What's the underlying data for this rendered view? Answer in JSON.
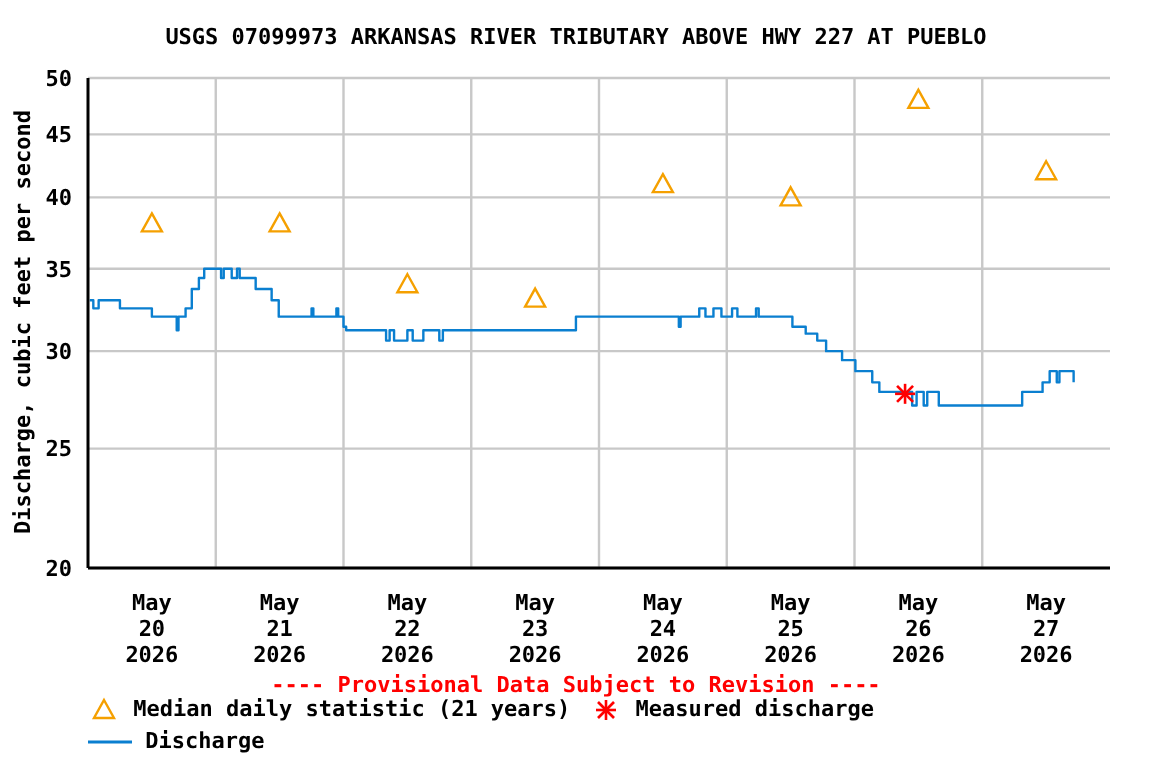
{
  "chart_data": {
    "type": "step",
    "title": "USGS 07099973 ARKANSAS RIVER TRIBUTARY ABOVE HWY 227 AT PUEBLO",
    "ylabel": "Discharge, cubic feet per second",
    "annotations": [
      "---- Provisional Data Subject to Revision ----"
    ],
    "log": "y",
    "grid": true,
    "legend": "bottom",
    "xlim": [
      "2026-05-20T00:00",
      "2026-05-28T00:00"
    ],
    "xticks": [
      {
        "value": "2026-05-20T12:00",
        "label": "May 20 2026"
      },
      {
        "value": "2026-05-21T00:00",
        "label": null
      },
      {
        "value": "2026-05-21T12:00",
        "label": "May 21 2026"
      },
      {
        "value": "2026-05-22T00:00",
        "label": null
      },
      {
        "value": "2026-05-22T12:00",
        "label": "May 22 2026"
      },
      {
        "value": "2026-05-23T00:00",
        "label": null
      },
      {
        "value": "2026-05-23T12:00",
        "label": "May 23 2026"
      },
      {
        "value": "2026-05-24T00:00",
        "label": null
      },
      {
        "value": "2026-05-24T12:00",
        "label": "May 24 2026"
      },
      {
        "value": "2026-05-25T00:00",
        "label": null
      },
      {
        "value": "2026-05-25T12:00",
        "label": "May 25 2026"
      },
      {
        "value": "2026-05-26T00:00",
        "label": null
      },
      {
        "value": "2026-05-26T12:00",
        "label": "May 26 2026"
      },
      {
        "value": "2026-05-27T00:00",
        "label": null
      },
      {
        "value": "2026-05-27T12:00",
        "label": "May 27 2026"
      }
    ],
    "ylim": [
      20,
      50
    ],
    "yticks": [
      20,
      25,
      30,
      35,
      40,
      45,
      50
    ],
    "series": [
      {
        "name": "Median daily statistic (21 years)",
        "type": "scatter",
        "marker": "triangle",
        "color": "#f5a000",
        "x": [
          "2026-05-20T12:00",
          "2026-05-21T12:00",
          "2026-05-22T12:00",
          "2026-05-23T12:00",
          "2026-05-24T12:00",
          "2026-05-25T12:00",
          "2026-05-26T12:00",
          "2026-05-27T12:00"
        ],
        "values": [
          38.1,
          38.1,
          34.0,
          33.1,
          41.0,
          40.0,
          48.0,
          42.0
        ]
      },
      {
        "name": "Measured discharge",
        "type": "scatter",
        "marker": "cross",
        "color": "#ff0000",
        "x": [
          "2026-05-26T09:30"
        ],
        "values": [
          27.7
        ]
      },
      {
        "name": "Discharge",
        "color": "#0a7fd0",
        "x": [
          "2026-05-20T00:20",
          "2026-05-20T01:00",
          "2026-05-20T02:00",
          "2026-05-20T06:00",
          "2026-05-20T12:00",
          "2026-05-20T16:40",
          "2026-05-20T17:00",
          "2026-05-20T18:20",
          "2026-05-20T19:30",
          "2026-05-20T20:50",
          "2026-05-20T21:50",
          "2026-05-21T01:00",
          "2026-05-21T01:30",
          "2026-05-21T03:00",
          "2026-05-21T04:00",
          "2026-05-21T04:30",
          "2026-05-21T07:30",
          "2026-05-21T10:30",
          "2026-05-21T11:50",
          "2026-05-21T18:00",
          "2026-05-21T18:20",
          "2026-05-21T22:40",
          "2026-05-21T23:00",
          "2026-05-22T00:00",
          "2026-05-22T00:30",
          "2026-05-22T08:00",
          "2026-05-22T08:40",
          "2026-05-22T09:30",
          "2026-05-22T12:00",
          "2026-05-22T13:00",
          "2026-05-22T15:00",
          "2026-05-22T18:00",
          "2026-05-22T18:40",
          "2026-05-23T19:40",
          "2026-05-24T15:00",
          "2026-05-24T15:20",
          "2026-05-24T18:50",
          "2026-05-24T20:00",
          "2026-05-24T21:30",
          "2026-05-24T23:00",
          "2026-05-25T01:00",
          "2026-05-25T02:00",
          "2026-05-25T05:30",
          "2026-05-25T06:00",
          "2026-05-25T12:20",
          "2026-05-25T14:50",
          "2026-05-25T17:00",
          "2026-05-25T18:40",
          "2026-05-25T21:40",
          "2026-05-26T00:10",
          "2026-05-26T03:20",
          "2026-05-26T04:40",
          "2026-05-26T10:50",
          "2026-05-26T11:40",
          "2026-05-26T13:00",
          "2026-05-26T13:40",
          "2026-05-26T15:50",
          "2026-05-27T07:30",
          "2026-05-27T11:20",
          "2026-05-27T12:40",
          "2026-05-27T14:00",
          "2026-05-27T14:30",
          "2026-05-27T17:10"
        ],
        "values": [
          33.0,
          32.5,
          33.0,
          32.5,
          32.0,
          31.2,
          32.0,
          32.5,
          33.7,
          34.4,
          35.0,
          34.4,
          35.0,
          34.4,
          35.0,
          34.4,
          33.7,
          33.0,
          32.0,
          32.5,
          32.0,
          32.5,
          32.0,
          31.4,
          31.2,
          30.6,
          31.2,
          30.6,
          31.2,
          30.6,
          31.2,
          30.6,
          31.2,
          32.0,
          31.4,
          32.0,
          32.5,
          32.0,
          32.5,
          32.0,
          32.5,
          32.0,
          32.5,
          32.0,
          31.4,
          31.0,
          30.6,
          30.0,
          29.5,
          28.9,
          28.3,
          27.8,
          27.1,
          27.8,
          27.1,
          27.8,
          27.1,
          27.8,
          28.3,
          28.9,
          28.3,
          28.9,
          28.3
        ]
      }
    ]
  }
}
